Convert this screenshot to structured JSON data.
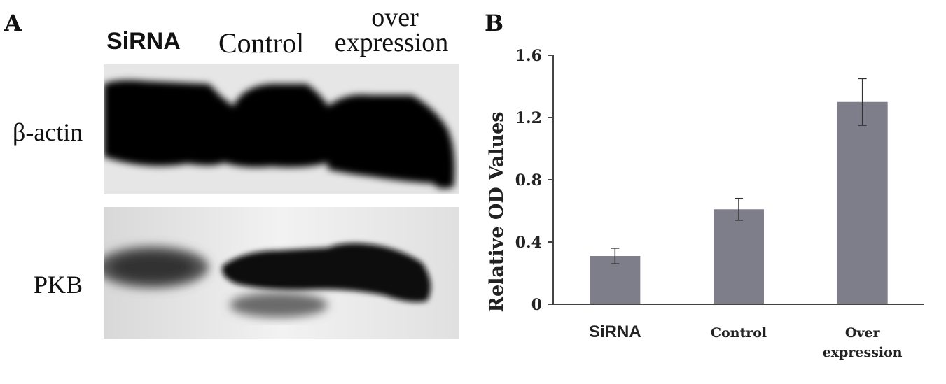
{
  "panels": {
    "a": {
      "letter": "A"
    },
    "b": {
      "letter": "B"
    }
  },
  "blot": {
    "lanes": [
      "SiRNA",
      "Control",
      "over",
      "expression"
    ],
    "rows": [
      "β-actin",
      "PKB"
    ]
  },
  "colors": {
    "bar": "#7e7d8a",
    "axis": "#444444",
    "blot_bg": "#e9e9e9",
    "band": "#0a0a0a"
  },
  "chart_data": {
    "type": "bar",
    "ylabel": "Relative OD  Values",
    "ylim": [
      0,
      1.6
    ],
    "yticks": [
      "0",
      "0.4",
      "0.8",
      "1.2",
      "1.6"
    ],
    "categories": [
      "SiRNA",
      "Control",
      "Over expression"
    ],
    "values": [
      0.31,
      0.61,
      1.3
    ],
    "error": [
      0.05,
      0.07,
      0.15
    ]
  }
}
